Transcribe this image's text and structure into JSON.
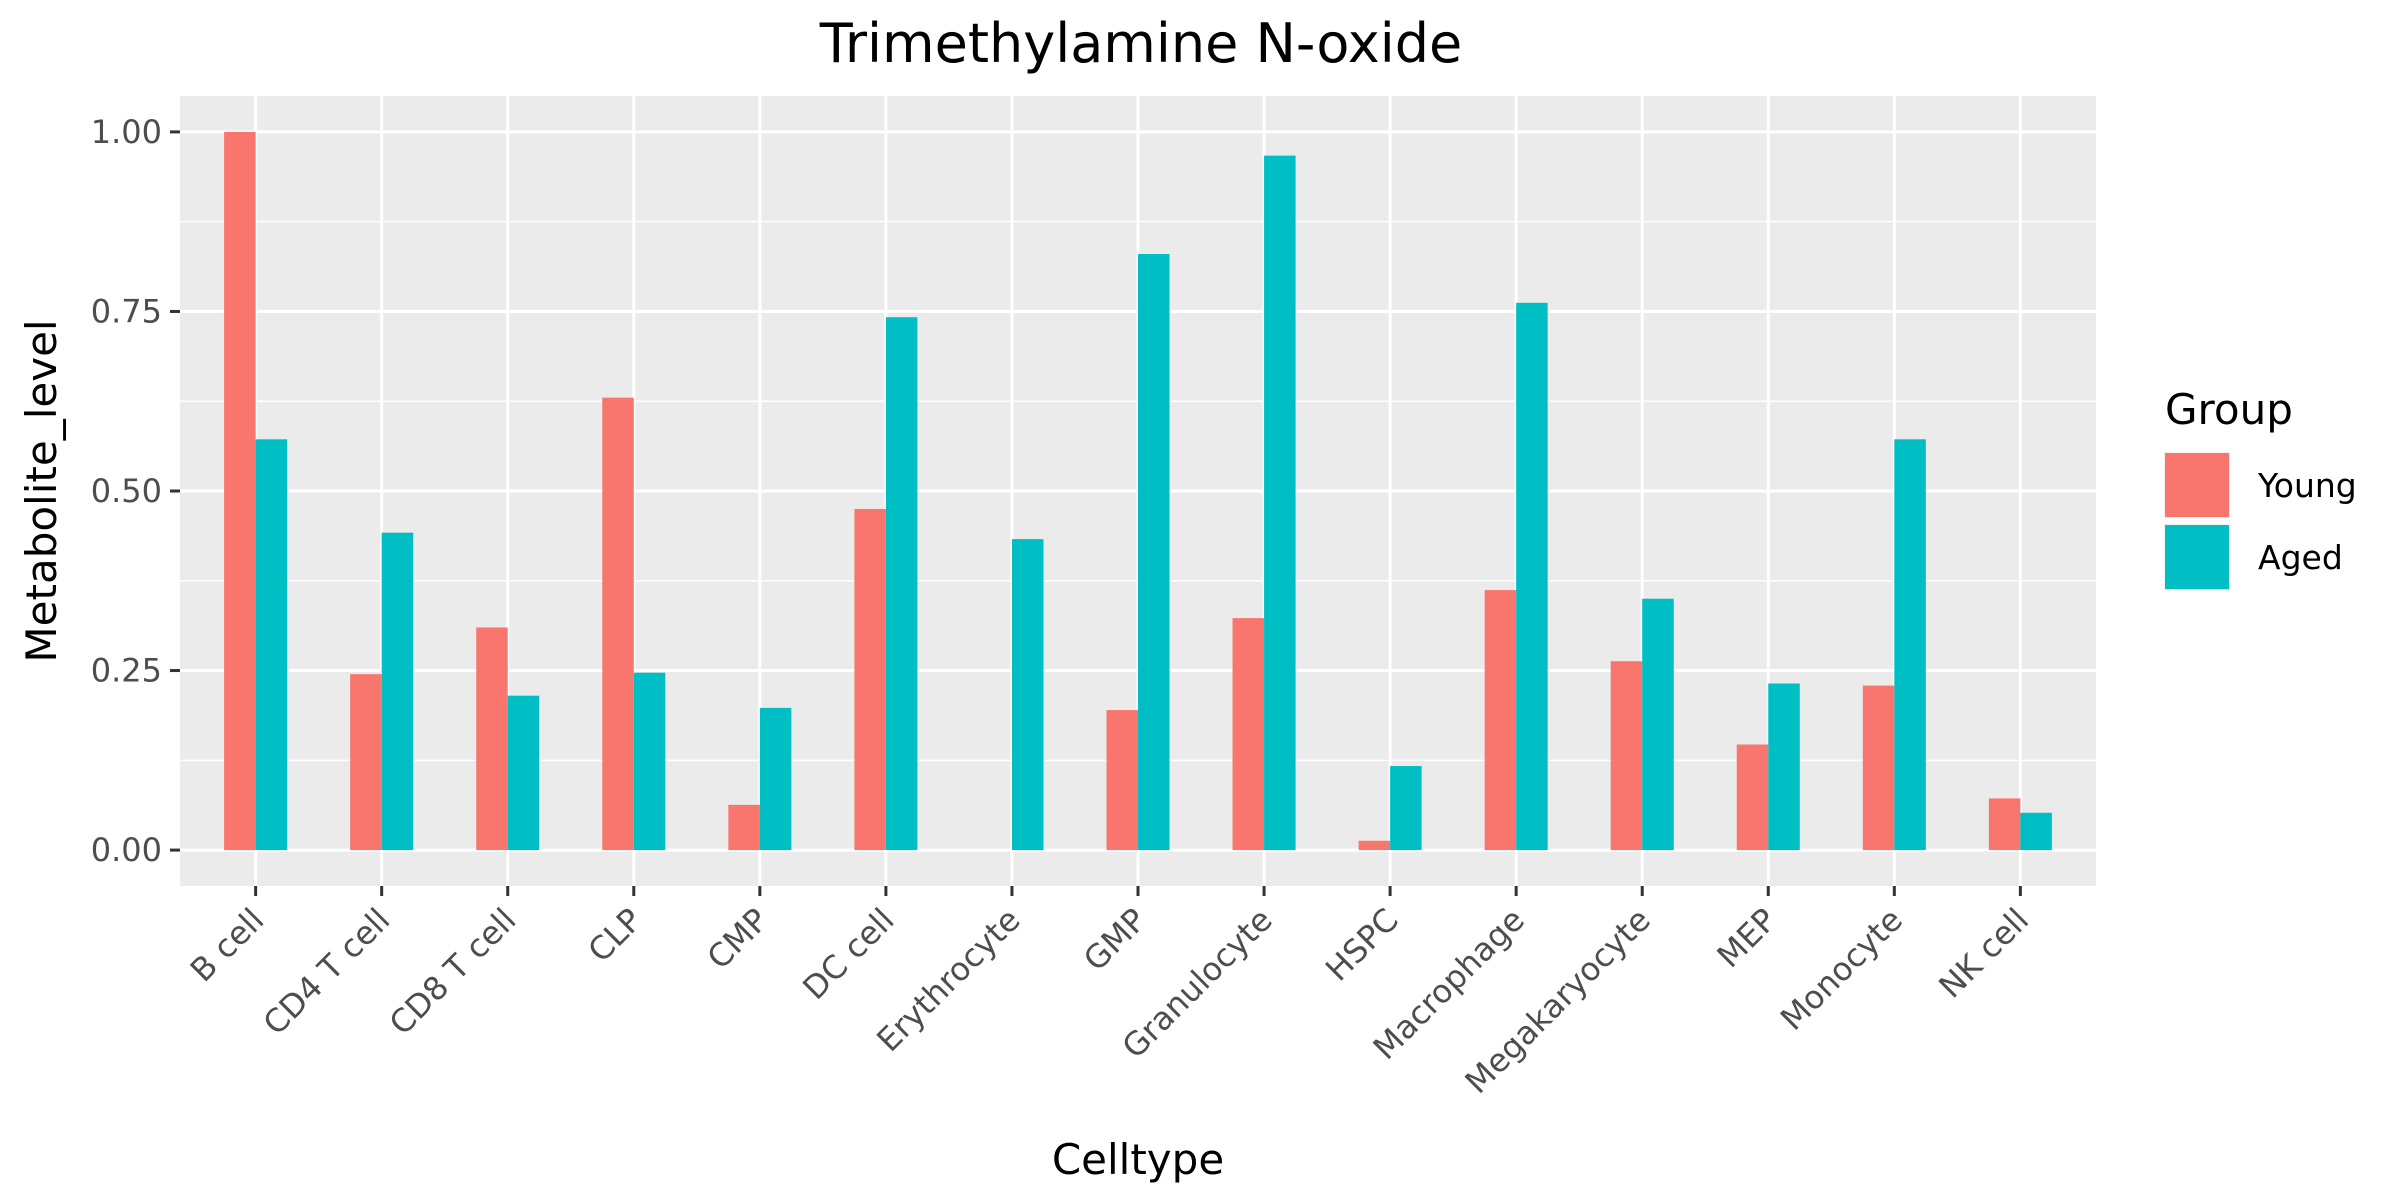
{
  "chart_data": {
    "type": "bar",
    "title": "Trimethylamine N-oxide",
    "xlabel": "Celltype",
    "ylabel": "Metabolite_level",
    "ylim": [
      -0.05,
      1.05
    ],
    "yticks": [
      0,
      0.25,
      0.5,
      0.75,
      1.0
    ],
    "ytick_labels": [
      "0.00",
      "0.25",
      "0.50",
      "0.75",
      "1.00"
    ],
    "grid": true,
    "legend": {
      "title": "Group",
      "placement": "right"
    },
    "categories": [
      "B cell",
      "CD4 T cell",
      "CD8 T cell",
      "CLP",
      "CMP",
      "DC cell",
      "Erythrocyte",
      "GMP",
      "Granulocyte",
      "HSPC",
      "Macrophage",
      "Megakaryocyte",
      "MEP",
      "Monocyte",
      "NK cell"
    ],
    "series": [
      {
        "name": "Young",
        "color": "#F8766D",
        "values": [
          1.0,
          0.245,
          0.31,
          0.63,
          0.063,
          0.475,
          0.0,
          0.195,
          0.323,
          0.013,
          0.362,
          0.263,
          0.147,
          0.229,
          0.072
        ]
      },
      {
        "name": "Aged",
        "color": "#00BFC4",
        "values": [
          0.572,
          0.442,
          0.215,
          0.247,
          0.198,
          0.742,
          0.433,
          0.83,
          0.967,
          0.117,
          0.762,
          0.35,
          0.232,
          0.572,
          0.052
        ]
      }
    ]
  }
}
